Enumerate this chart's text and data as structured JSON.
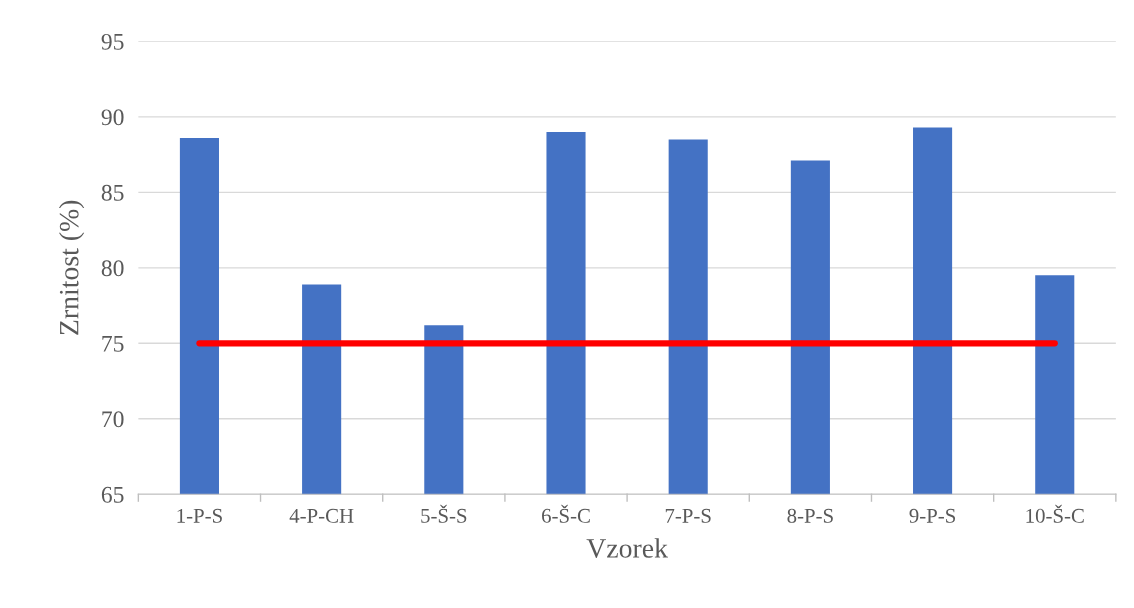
{
  "chart_data": {
    "type": "bar",
    "xlabel": "Vzorek",
    "ylabel": "Zrnitost (%)",
    "categories": [
      "1-P-S",
      "4-P-CH",
      "5-Š-S",
      "6-Š-C",
      "7-P-S",
      "8-P-S",
      "9-P-S",
      "10-Š-C"
    ],
    "series": [
      {
        "color": "#4472c4",
        "values": [
          88.6,
          78.9,
          76.2,
          89.0,
          88.5,
          87.1,
          89.3,
          79.5
        ]
      },
      {
        "type": "line",
        "color": "#ff0000",
        "values": [
          75,
          75,
          75,
          75,
          75,
          75,
          75,
          75
        ]
      }
    ],
    "ylim": [
      65,
      95
    ],
    "yticks": [
      65,
      70,
      75,
      80,
      85,
      90,
      95
    ],
    "grid": "y",
    "legend": false
  }
}
